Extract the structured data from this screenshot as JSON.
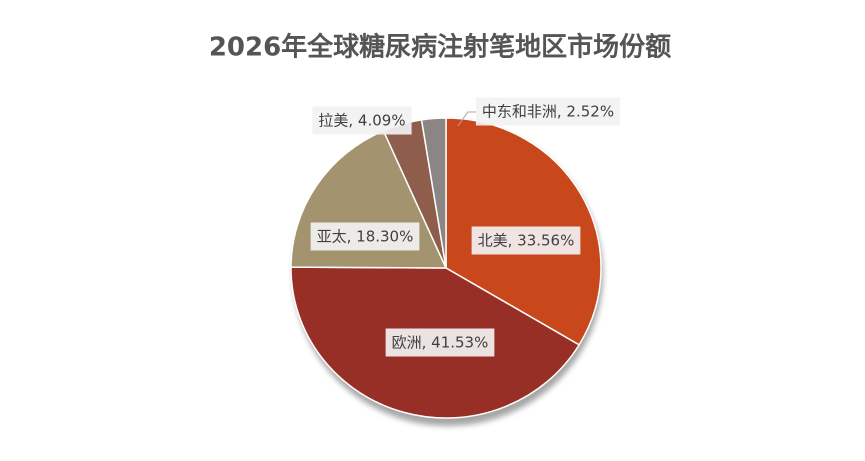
{
  "chart_data": {
    "type": "pie",
    "title": "2026年全球糖尿病注射笔地区市场份额",
    "values": [
      33.56,
      41.53,
      18.3,
      4.09,
      2.52
    ],
    "value_labels": [
      "北美, 33.56%",
      "欧洲, 41.53%",
      "亚太, 18.30%",
      "拉美, 4.09%",
      "中东和非洲, 2.52%"
    ],
    "colors": [
      "#c9481b",
      "#982f27",
      "#a3946f",
      "#8e5d4c",
      "#8c8585"
    ]
  }
}
